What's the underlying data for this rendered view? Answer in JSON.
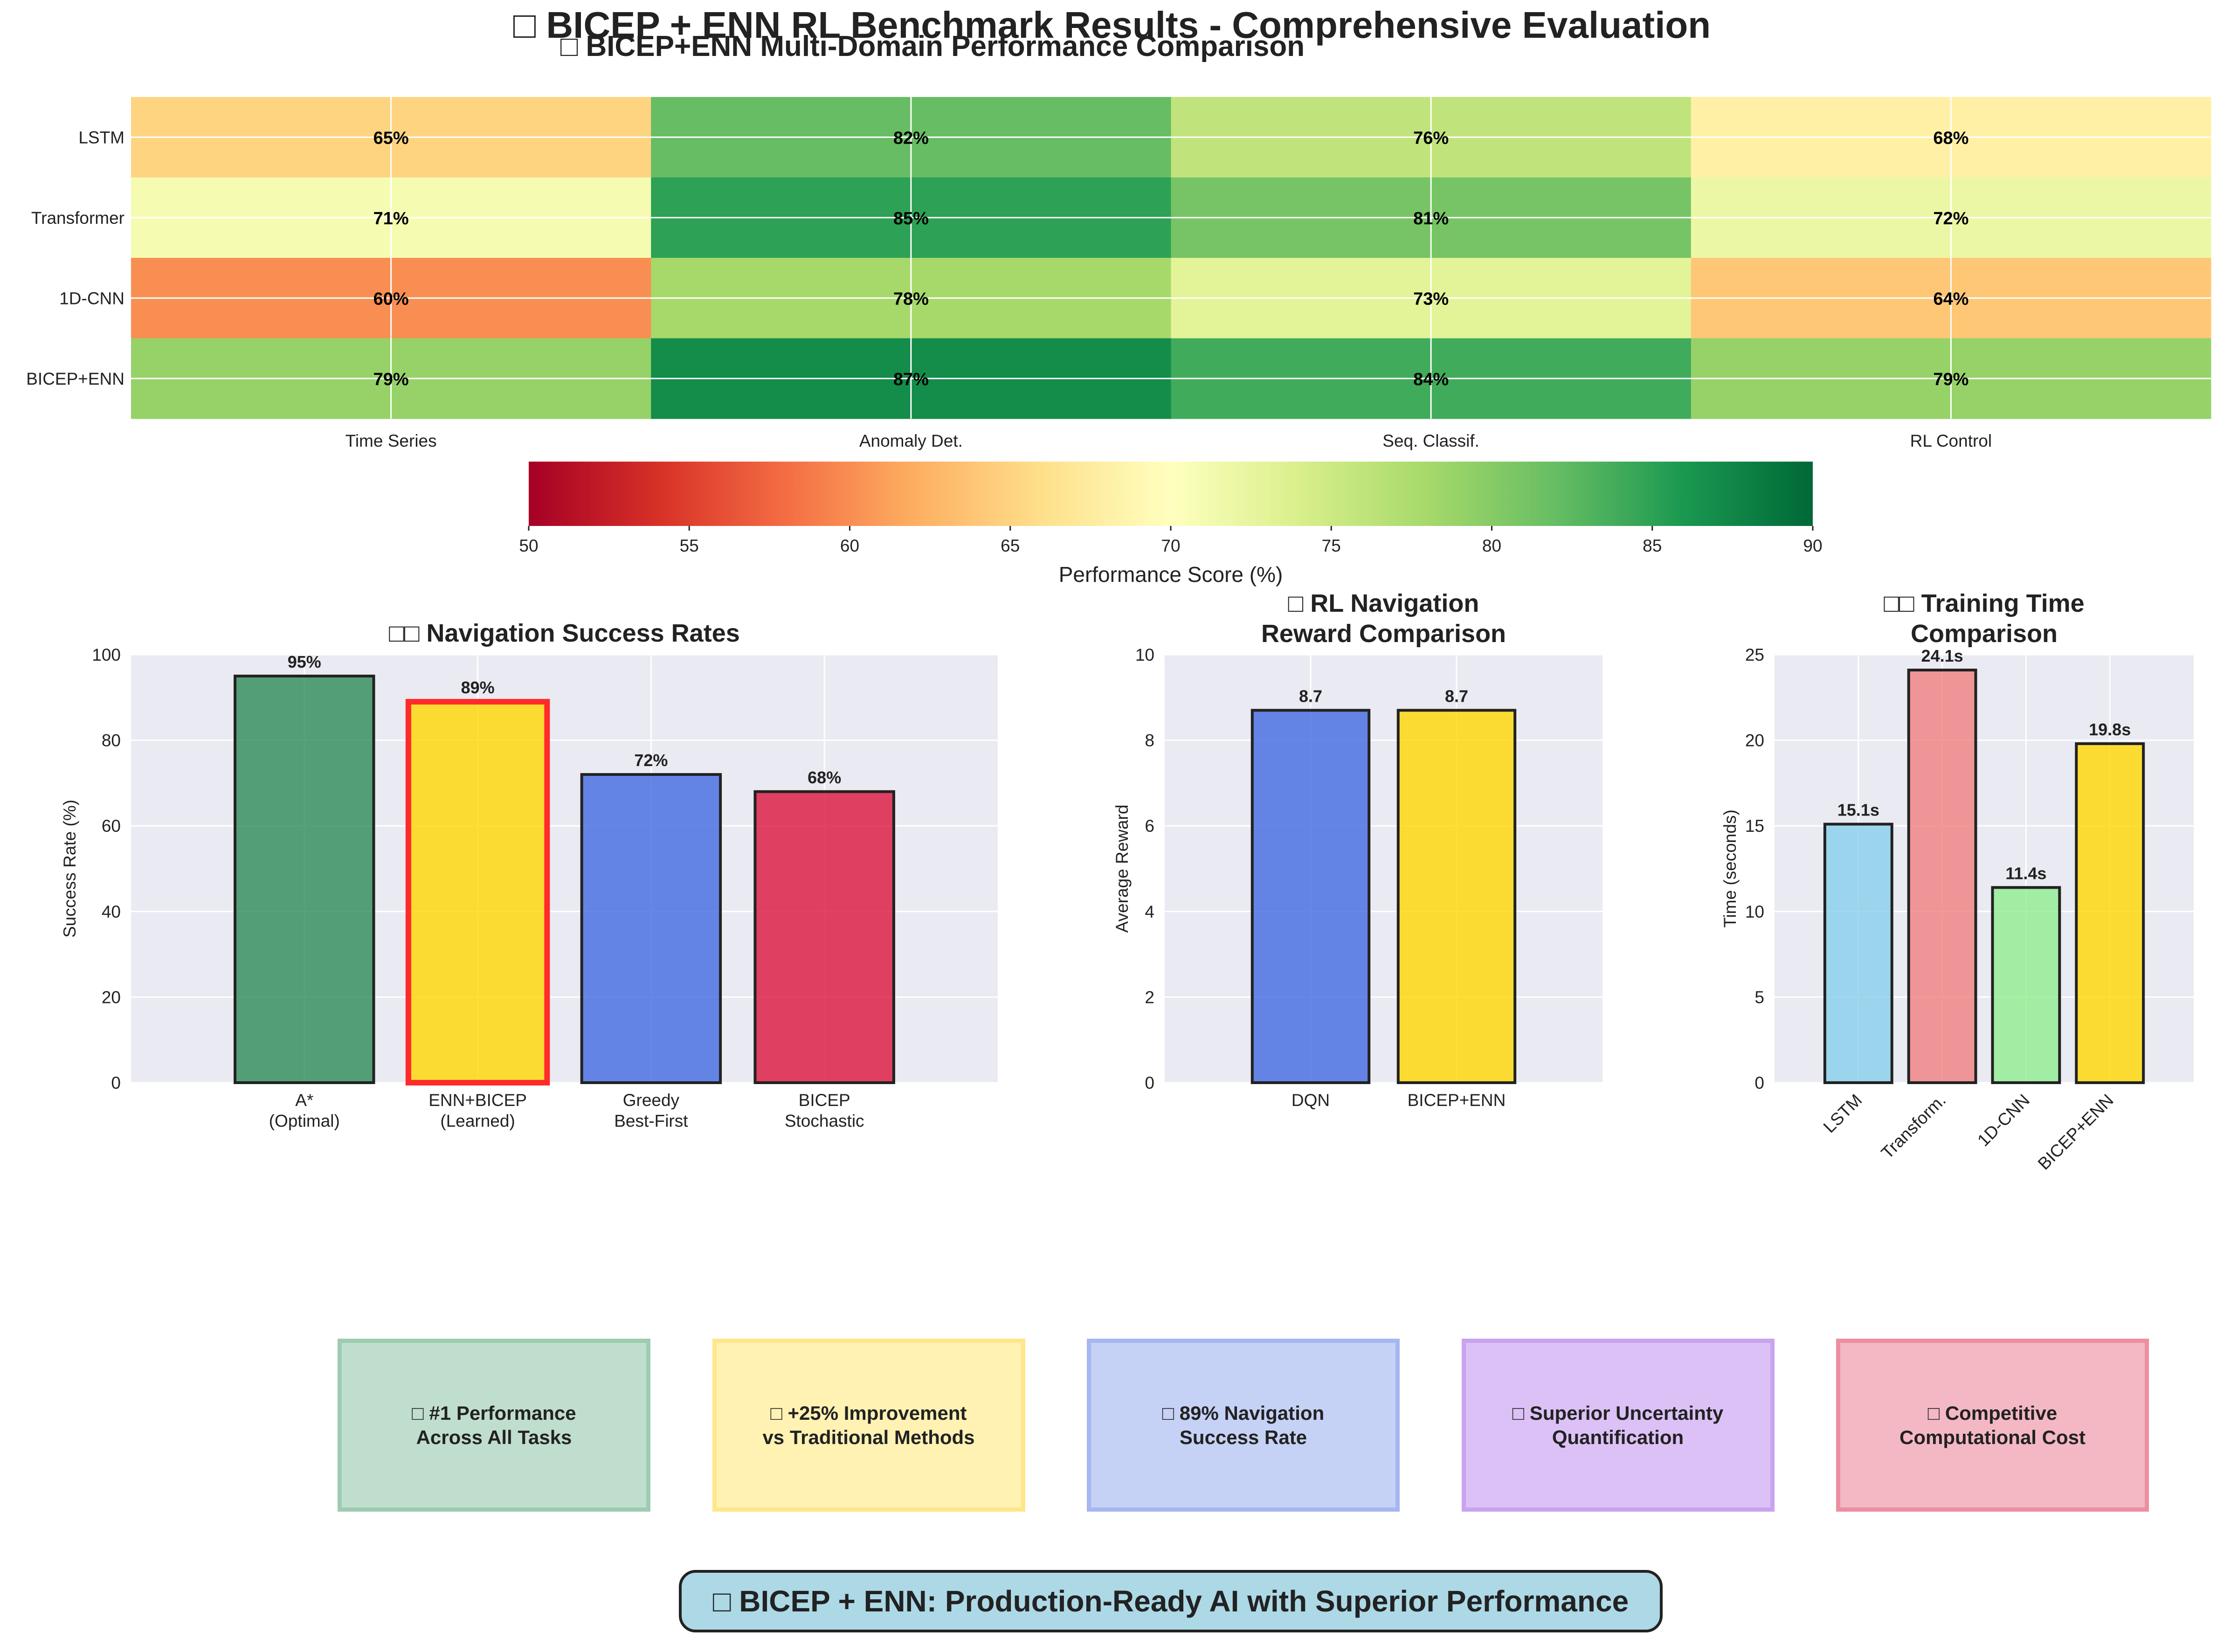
{
  "figure": {
    "title": "□ BICEP + ENN RL Benchmark Results - Comprehensive Evaluation",
    "footer": "□ BICEP + ENN: Production-Ready AI with Superior Performance"
  },
  "colors": {
    "plot_bg": "#eaeaf2",
    "grid": "#ffffff",
    "bar_edge": "#222222",
    "highlight_edge": "#ff2a2a"
  },
  "chart_data": [
    {
      "type": "heatmap",
      "title": "□ BICEP+ENN Multi-Domain Performance Comparison",
      "rows": [
        "LSTM",
        "Transformer",
        "1D-CNN",
        "BICEP+ENN"
      ],
      "columns": [
        "Time Series",
        "Anomaly Det.",
        "Seq. Classif.",
        "RL Control"
      ],
      "values": [
        [
          65,
          82,
          76,
          68
        ],
        [
          71,
          85,
          81,
          72
        ],
        [
          60,
          78,
          73,
          64
        ],
        [
          79,
          87,
          84,
          79
        ]
      ],
      "value_labels": [
        [
          "65%",
          "82%",
          "76%",
          "68%"
        ],
        [
          "71%",
          "85%",
          "81%",
          "72%"
        ],
        [
          "60%",
          "78%",
          "73%",
          "64%"
        ],
        [
          "79%",
          "87%",
          "84%",
          "79%"
        ]
      ],
      "colormap": "RdYlGn",
      "vmin": 50,
      "vmax": 90,
      "colorbar_label": "Performance Score (%)",
      "colorbar_ticks": [
        "50",
        "55",
        "60",
        "65",
        "70",
        "75",
        "80",
        "85",
        "90"
      ]
    },
    {
      "type": "bar",
      "title": "□□ Navigation Success Rates",
      "categories": [
        "A*\n(Optimal)",
        "ENN+BICEP\n(Learned)",
        "Greedy\nBest-First",
        "BICEP\nStochastic"
      ],
      "values": [
        95,
        89,
        72,
        68
      ],
      "value_labels": [
        "95%",
        "89%",
        "72%",
        "68%"
      ],
      "colors": [
        "#2e8b57",
        "#ffd700",
        "#4169e1",
        "#dc143c"
      ],
      "highlight_index": 1,
      "ylabel": "Success Rate (%)",
      "ylim": [
        0,
        100
      ],
      "yticks": [
        "0",
        "20",
        "40",
        "60",
        "80",
        "100"
      ]
    },
    {
      "type": "bar",
      "title": "□ RL Navigation\nReward Comparison",
      "categories": [
        "DQN",
        "BICEP+ENN"
      ],
      "values": [
        8.7,
        8.7
      ],
      "value_labels": [
        "8.7",
        "8.7"
      ],
      "colors": [
        "#4169e1",
        "#ffd700"
      ],
      "ylabel": "Average Reward",
      "ylim": [
        0,
        10
      ],
      "yticks": [
        "0",
        "2",
        "4",
        "6",
        "8",
        "10"
      ]
    },
    {
      "type": "bar",
      "title": "□□ Training Time\nComparison",
      "categories": [
        "LSTM",
        "Transform.",
        "1D-CNN",
        "BICEP+ENN"
      ],
      "values": [
        15.1,
        24.1,
        11.4,
        19.8
      ],
      "value_labels": [
        "15.1s",
        "24.1s",
        "11.4s",
        "19.8s"
      ],
      "colors": [
        "#87ceeb",
        "#f08080",
        "#90ee90",
        "#ffd700"
      ],
      "ylabel": "Time (seconds)",
      "ylim": [
        0,
        25
      ],
      "yticks": [
        "0",
        "5",
        "10",
        "15",
        "20",
        "25"
      ]
    }
  ],
  "highlights": [
    {
      "text": "□ #1 Performance\nAcross All Tasks",
      "bg": "#c0dece",
      "border": "#9ecbb1"
    },
    {
      "text": "□ +25% Improvement\nvs Traditional Methods",
      "bg": "#fff2b3",
      "border": "#ffe68a"
    },
    {
      "text": "□ 89% Navigation\nSuccess Rate",
      "bg": "#c6d1f6",
      "border": "#a5b7f0"
    },
    {
      "text": "□ Superior Uncertainty\nQuantification",
      "bg": "#dcc1f6",
      "border": "#c9a3f0"
    },
    {
      "text": "□ Competitive\nComputational Cost",
      "bg": "#f4b8c4",
      "border": "#ec8ea2"
    }
  ]
}
